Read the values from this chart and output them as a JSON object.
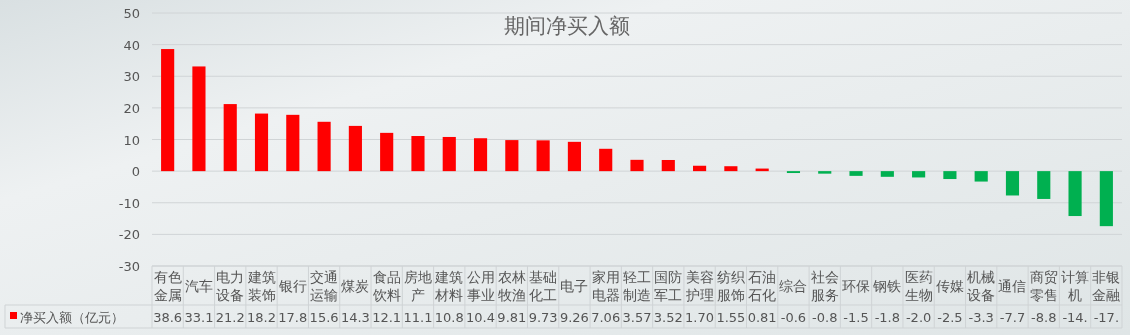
{
  "chart_data": {
    "type": "bar",
    "title": "期间净买入额",
    "categories": [
      "有色金属",
      "汽车",
      "电力设备",
      "建筑装饰",
      "银行",
      "交通运输",
      "煤炭",
      "食品饮料",
      "房地产",
      "建筑材料",
      "公用事业",
      "农林牧渔",
      "基础化工",
      "电子",
      "家用电器",
      "轻工制造",
      "国防军工",
      "美容护理",
      "纺织服饰",
      "石油石化",
      "综合",
      "社会服务",
      "环保",
      "钢铁",
      "医药生物",
      "传媒",
      "机械设备",
      "通信",
      "商贸零售",
      "计算机",
      "非银金融"
    ],
    "series": [
      {
        "name": "净买入额（亿元）",
        "color": "#ff0000",
        "values": [
          38.6,
          33.1,
          21.2,
          18.2,
          17.8,
          15.6,
          14.3,
          12.1,
          11.1,
          10.8,
          10.4,
          9.81,
          9.73,
          9.26,
          7.06,
          3.57,
          3.52,
          1.7,
          1.55,
          0.81,
          -0.6,
          -0.8,
          -1.5,
          -1.8,
          -2.0,
          -2.5,
          -3.3,
          -7.7,
          -8.8,
          -14.2,
          -17.4
        ],
        "value_labels": [
          "38.6",
          "33.1",
          "21.2",
          "18.2",
          "17.8",
          "15.6",
          "14.3",
          "12.1",
          "11.1",
          "10.8",
          "10.4",
          "9.81",
          "9.73",
          "9.26",
          "7.06",
          "3.57",
          "3.52",
          "1.70",
          "1.55",
          "0.81",
          "-0.6",
          "-0.8",
          "-1.5",
          "-1.8",
          "-2.0",
          "-2.5",
          "-3.3",
          "-7.7",
          "-8.8",
          "-14.",
          "-17."
        ],
        "colors": [
          "#ff0000",
          "#ff0000",
          "#ff0000",
          "#ff0000",
          "#ff0000",
          "#ff0000",
          "#ff0000",
          "#ff0000",
          "#ff0000",
          "#ff0000",
          "#ff0000",
          "#ff0000",
          "#ff0000",
          "#ff0000",
          "#ff0000",
          "#ff0000",
          "#ff0000",
          "#ff0000",
          "#ff0000",
          "#ff0000",
          "#00b050",
          "#00b050",
          "#00b050",
          "#00b050",
          "#00b050",
          "#00b050",
          "#00b050",
          "#00b050",
          "#00b050",
          "#00b050",
          "#00b050"
        ]
      }
    ],
    "ylim": [
      -30,
      50
    ],
    "yticks": [
      -30,
      -20,
      -10,
      0,
      10,
      20,
      30,
      40,
      50
    ],
    "grid": "y",
    "legend": "bottom"
  }
}
